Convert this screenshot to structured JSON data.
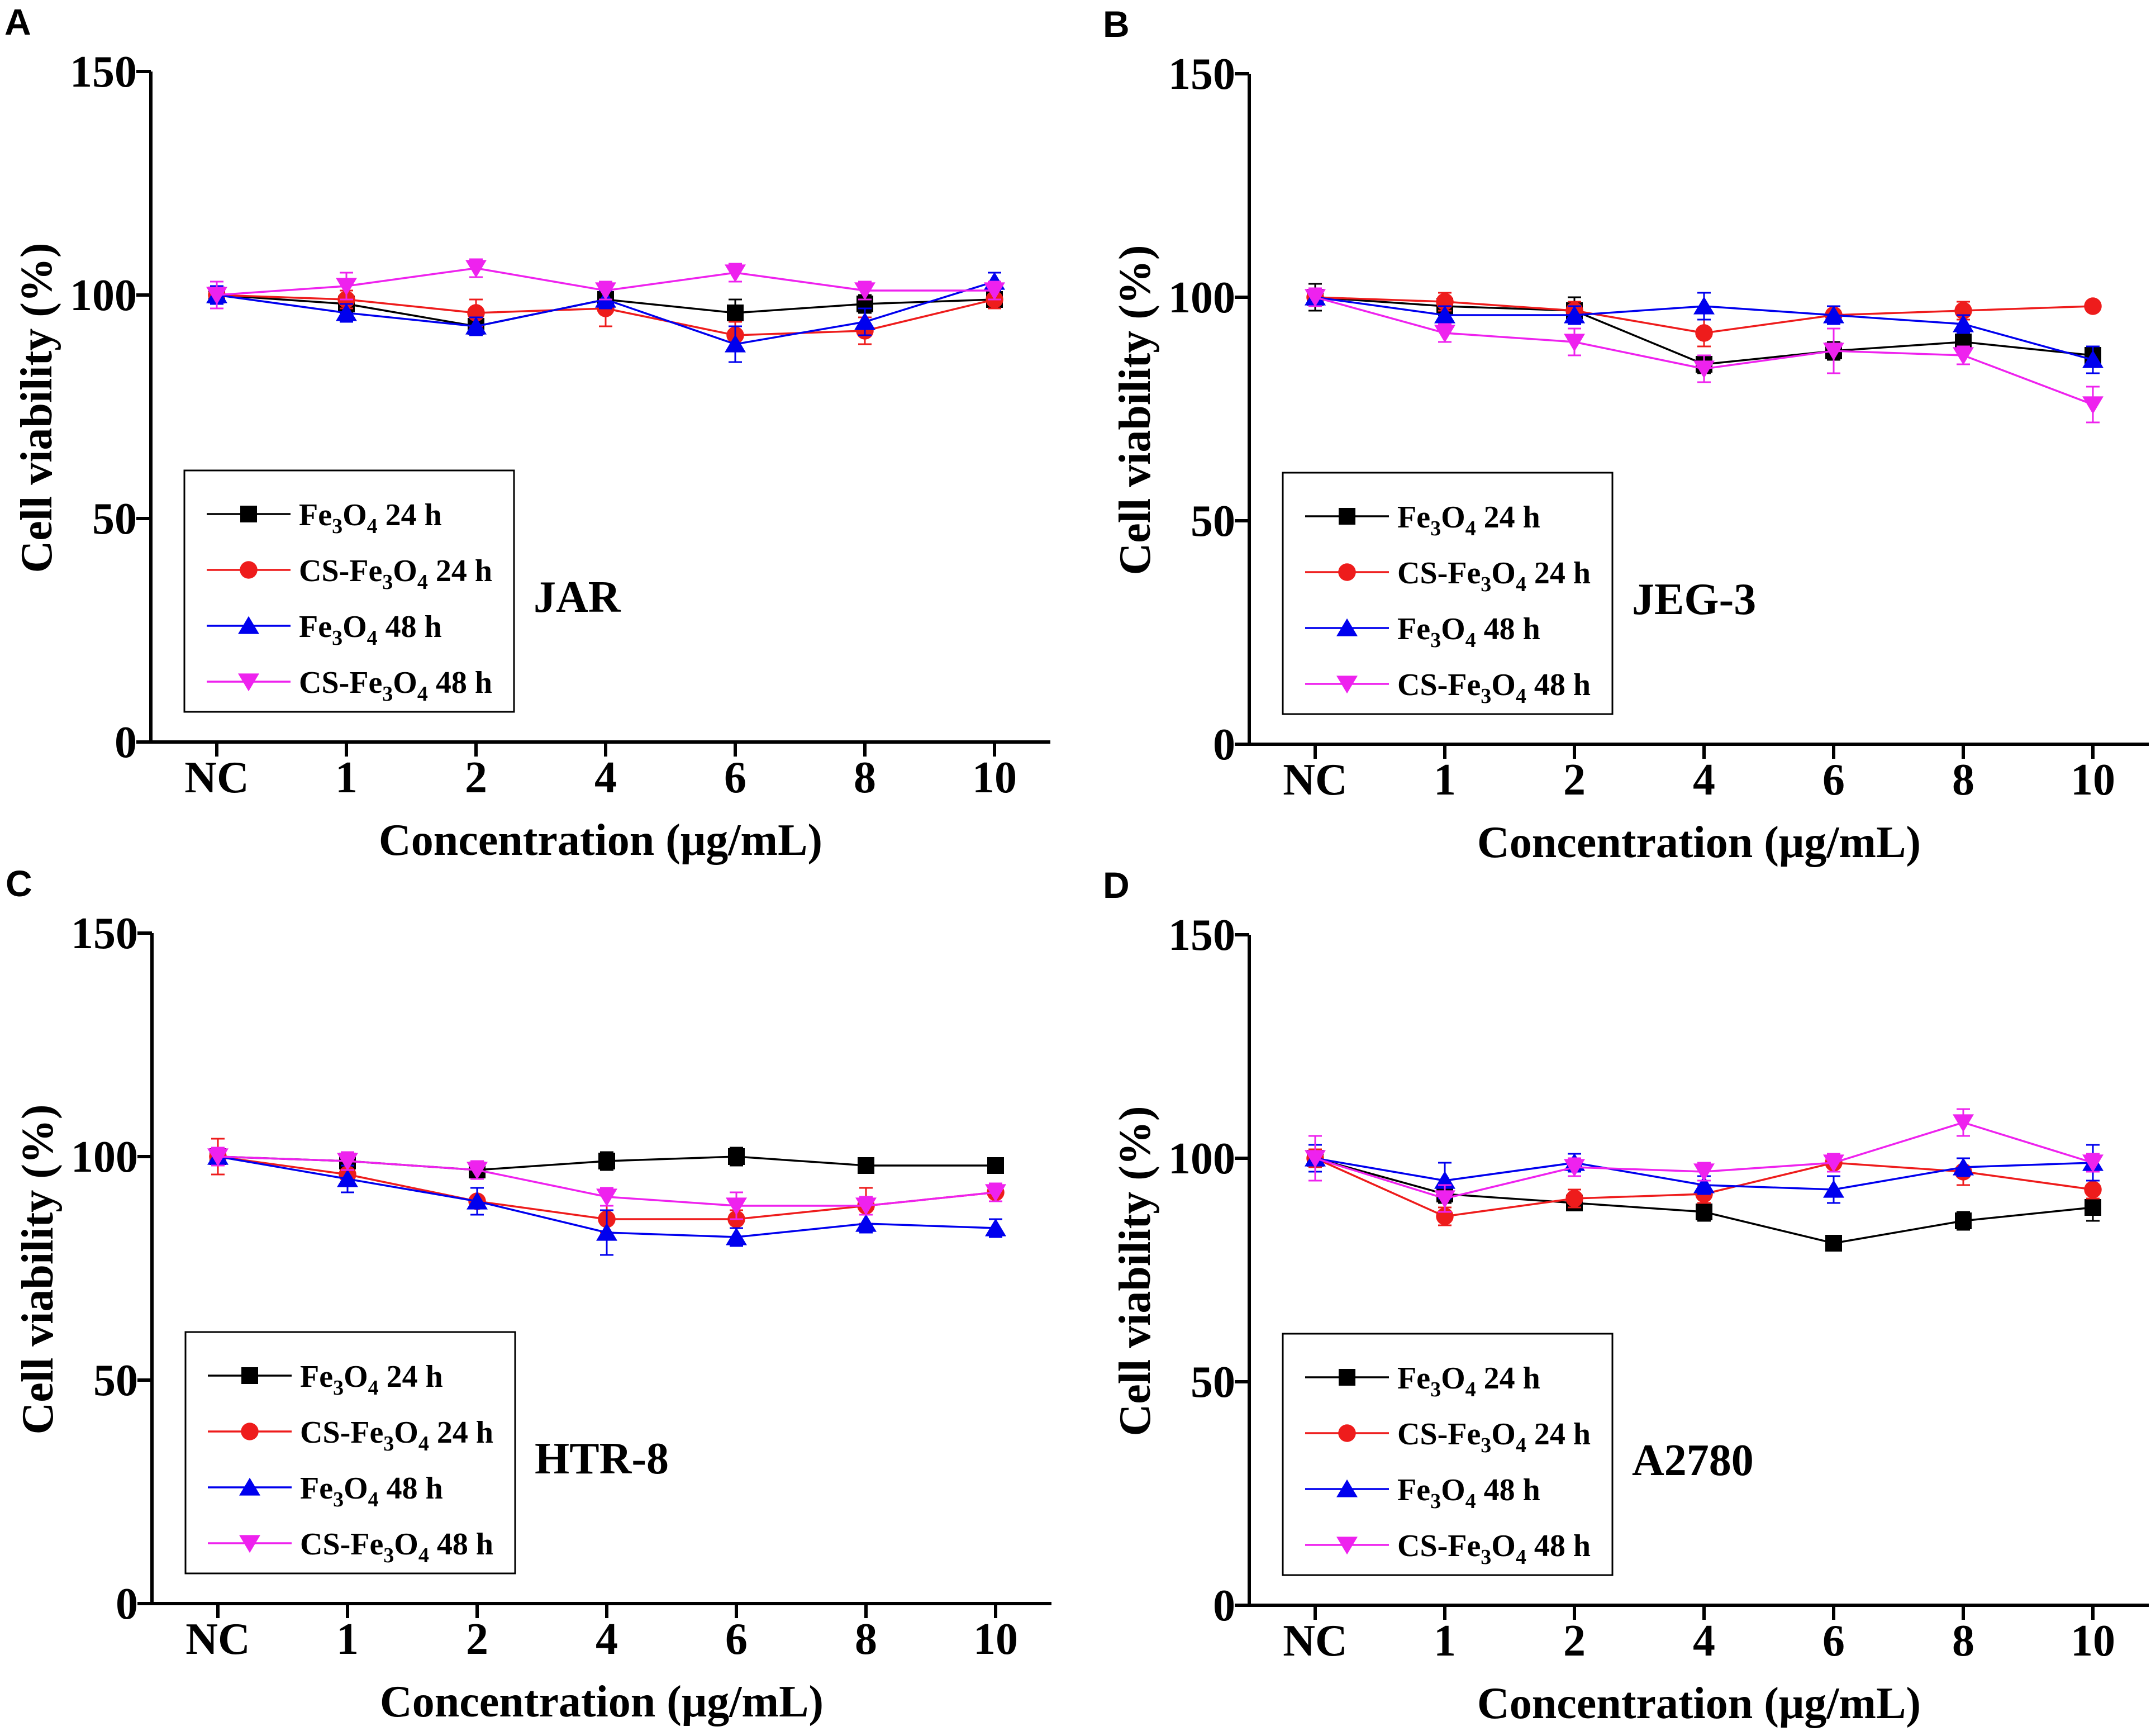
{
  "figure": {
    "colors": {
      "fe3o4_24h": "#000000",
      "cs_fe3o4_24h": "#ee1c1c",
      "fe3o4_48h": "#0000ee",
      "cs_fe3o4_48h": "#ee22ee"
    },
    "markers": {
      "fe3o4_24h": "square",
      "cs_fe3o4_24h": "circle",
      "fe3o4_48h": "triangle-up",
      "cs_fe3o4_48h": "triangle-down"
    }
  },
  "chart_data": [
    {
      "panel_label": "A",
      "type": "line",
      "title": "",
      "annotation": "JAR",
      "xlabel": "Concentration (μg/mL)",
      "ylabel": "Cell viability (%)",
      "categories": [
        "NC",
        "1",
        "2",
        "4",
        "6",
        "8",
        "10"
      ],
      "ylim": [
        0,
        150
      ],
      "yticks": [
        "0",
        "50",
        "100",
        "150"
      ],
      "legend": {
        "position": "bottom-left"
      },
      "series": [
        {
          "key": "fe3o4_24h",
          "name": "Fe3O4 24 h",
          "legend": {
            "base": "Fe",
            "s1": "3",
            "mid": "O",
            "s2": "4",
            "tail": " 24 h"
          },
          "values": [
            100,
            98,
            93,
            99,
            96,
            98,
            99
          ],
          "errors": [
            2,
            2,
            2,
            2,
            3,
            2,
            2
          ]
        },
        {
          "key": "cs_fe3o4_24h",
          "name": "CS-Fe3O4 24 h",
          "legend": {
            "base": "CS-Fe",
            "s1": "3",
            "mid": "O",
            "s2": "4",
            "tail": " 24 h"
          },
          "values": [
            100,
            99,
            96,
            97,
            91,
            92,
            99
          ],
          "errors": [
            2,
            2,
            3,
            4,
            3,
            3,
            2
          ]
        },
        {
          "key": "fe3o4_48h",
          "name": "Fe3O4 48 h",
          "legend": {
            "base": "Fe",
            "s1": "3",
            "mid": "O",
            "s2": "4",
            "tail": " 48 h"
          },
          "values": [
            100,
            96,
            93,
            99,
            89,
            94,
            103
          ],
          "errors": [
            2,
            2,
            2,
            2,
            4,
            3,
            2
          ]
        },
        {
          "key": "cs_fe3o4_48h",
          "name": "CS-Fe3O4 48 h",
          "legend": {
            "base": "CS-Fe",
            "s1": "3",
            "mid": "O",
            "s2": "4",
            "tail": " 48 h"
          },
          "values": [
            100,
            102,
            106,
            101,
            105,
            101,
            101
          ],
          "errors": [
            3,
            3,
            2,
            2,
            2,
            2,
            2
          ]
        }
      ]
    },
    {
      "panel_label": "B",
      "type": "line",
      "title": "",
      "annotation": "JEG-3",
      "xlabel": "Concentration (μg/mL)",
      "ylabel": "Cell viability (%)",
      "categories": [
        "NC",
        "1",
        "2",
        "4",
        "6",
        "8",
        "10"
      ],
      "ylim": [
        0,
        150
      ],
      "yticks": [
        "0",
        "50",
        "100",
        "150"
      ],
      "legend": {
        "position": "bottom-left"
      },
      "series": [
        {
          "key": "fe3o4_24h",
          "name": "Fe3O4 24 h",
          "legend": {
            "base": "Fe",
            "s1": "3",
            "mid": "O",
            "s2": "4",
            "tail": " 24 h"
          },
          "values": [
            100,
            98,
            97,
            85,
            88,
            90,
            87
          ],
          "errors": [
            3,
            2,
            3,
            2,
            2,
            2,
            2
          ]
        },
        {
          "key": "cs_fe3o4_24h",
          "name": "CS-Fe3O4 24 h",
          "legend": {
            "base": "CS-Fe",
            "s1": "3",
            "mid": "O",
            "s2": "4",
            "tail": " 24 h"
          },
          "values": [
            100,
            99,
            97,
            92,
            96,
            97,
            98
          ],
          "errors": [
            2,
            2,
            2,
            3,
            2,
            2,
            1
          ]
        },
        {
          "key": "fe3o4_48h",
          "name": "Fe3O4 48 h",
          "legend": {
            "base": "Fe",
            "s1": "3",
            "mid": "O",
            "s2": "4",
            "tail": " 48 h"
          },
          "values": [
            100,
            96,
            96,
            98,
            96,
            94,
            86
          ],
          "errors": [
            2,
            2,
            2,
            3,
            2,
            2,
            3
          ]
        },
        {
          "key": "cs_fe3o4_48h",
          "name": "CS-Fe3O4 48 h",
          "legend": {
            "base": "CS-Fe",
            "s1": "3",
            "mid": "O",
            "s2": "4",
            "tail": " 48 h"
          },
          "values": [
            100,
            92,
            90,
            84,
            88,
            87,
            76
          ],
          "errors": [
            2,
            2,
            3,
            3,
            5,
            2,
            4
          ]
        }
      ]
    },
    {
      "panel_label": "C",
      "type": "line",
      "title": "",
      "annotation": "HTR-8",
      "xlabel": "Concentration (μg/mL)",
      "ylabel": "Cell viability (%)",
      "categories": [
        "NC",
        "1",
        "2",
        "4",
        "6",
        "8",
        "10"
      ],
      "ylim": [
        0,
        150
      ],
      "yticks": [
        "0",
        "50",
        "100",
        "150"
      ],
      "legend": {
        "position": "bottom-left"
      },
      "series": [
        {
          "key": "fe3o4_24h",
          "name": "Fe3O4 24 h",
          "legend": {
            "base": "Fe",
            "s1": "3",
            "mid": "O",
            "s2": "4",
            "tail": " 24 h"
          },
          "values": [
            100,
            99,
            97,
            99,
            100,
            98,
            98
          ],
          "errors": [
            2,
            2,
            2,
            2,
            2,
            1,
            1
          ]
        },
        {
          "key": "cs_fe3o4_24h",
          "name": "CS-Fe3O4 24 h",
          "legend": {
            "base": "CS-Fe",
            "s1": "3",
            "mid": "O",
            "s2": "4",
            "tail": " 24 h"
          },
          "values": [
            100,
            96,
            90,
            86,
            86,
            89,
            92
          ],
          "errors": [
            4,
            2,
            3,
            3,
            2,
            4,
            2
          ]
        },
        {
          "key": "fe3o4_48h",
          "name": "Fe3O4 48 h",
          "legend": {
            "base": "Fe",
            "s1": "3",
            "mid": "O",
            "s2": "4",
            "tail": " 48 h"
          },
          "values": [
            100,
            95,
            90,
            83,
            82,
            85,
            84
          ],
          "errors": [
            2,
            3,
            3,
            5,
            2,
            2,
            2
          ]
        },
        {
          "key": "cs_fe3o4_48h",
          "name": "CS-Fe3O4 48 h",
          "legend": {
            "base": "CS-Fe",
            "s1": "3",
            "mid": "O",
            "s2": "4",
            "tail": " 48 h"
          },
          "values": [
            100,
            99,
            97,
            91,
            89,
            89,
            92
          ],
          "errors": [
            2,
            2,
            2,
            2,
            3,
            2,
            2
          ]
        }
      ]
    },
    {
      "panel_label": "D",
      "type": "line",
      "title": "",
      "annotation": "A2780",
      "xlabel": "Concentration (μg/mL)",
      "ylabel": "Cell viability (%)",
      "categories": [
        "NC",
        "1",
        "2",
        "4",
        "6",
        "8",
        "10"
      ],
      "ylim": [
        0,
        150
      ],
      "yticks": [
        "0",
        "50",
        "100",
        "150"
      ],
      "legend": {
        "position": "bottom-left"
      },
      "series": [
        {
          "key": "fe3o4_24h",
          "name": "Fe3O4 24 h",
          "legend": {
            "base": "Fe",
            "s1": "3",
            "mid": "O",
            "s2": "4",
            "tail": " 24 h"
          },
          "values": [
            100,
            92,
            90,
            88,
            81,
            86,
            89
          ],
          "errors": [
            3,
            2,
            1,
            2,
            1,
            2,
            3
          ]
        },
        {
          "key": "cs_fe3o4_24h",
          "name": "CS-Fe3O4 24 h",
          "legend": {
            "base": "CS-Fe",
            "s1": "3",
            "mid": "O",
            "s2": "4",
            "tail": " 24 h"
          },
          "values": [
            100,
            87,
            91,
            92,
            99,
            97,
            93
          ],
          "errors": [
            2,
            2,
            2,
            2,
            2,
            3,
            2
          ]
        },
        {
          "key": "fe3o4_48h",
          "name": "Fe3O4 48 h",
          "legend": {
            "base": "Fe",
            "s1": "3",
            "mid": "O",
            "s2": "4",
            "tail": " 48 h"
          },
          "values": [
            100,
            95,
            99,
            94,
            93,
            98,
            99
          ],
          "errors": [
            3,
            4,
            2,
            2,
            3,
            2,
            4
          ]
        },
        {
          "key": "cs_fe3o4_48h",
          "name": "CS-Fe3O4 48 h",
          "legend": {
            "base": "CS-Fe",
            "s1": "3",
            "mid": "O",
            "s2": "4",
            "tail": " 48 h"
          },
          "values": [
            100,
            91,
            98,
            97,
            99,
            108,
            99
          ],
          "errors": [
            5,
            3,
            2,
            2,
            2,
            3,
            2
          ]
        }
      ]
    }
  ]
}
